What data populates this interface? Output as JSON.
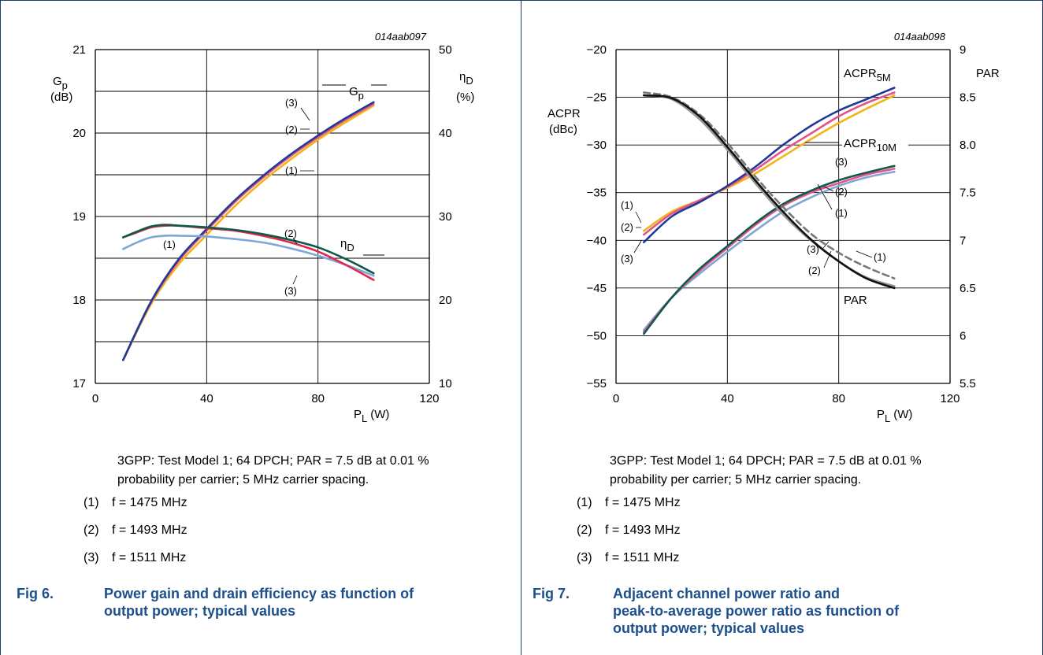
{
  "charts": [
    {
      "code": "014aab097",
      "xlabel": "P",
      "xlabel_sub": "L",
      "xlabel_unit": "(W)",
      "x_ticks": [
        "0",
        "40",
        "80",
        "120"
      ],
      "left_ticks": [
        "21",
        "20",
        "19",
        "18",
        "17"
      ],
      "right_ticks": [
        "50",
        "40",
        "30",
        "20",
        "10"
      ],
      "left_axis_label": {
        "main": "G",
        "sub": "p",
        "unit": "(dB)"
      },
      "right_axis_label": {
        "main": "η",
        "sub": "D",
        "unit": "(%)"
      },
      "curve_labels": {
        "gp_main": "G",
        "gp_sub": "p",
        "eta_main": "η",
        "eta_sub": "D"
      },
      "markers": [
        "(3)",
        "(2)",
        "(1)",
        "(2)",
        "(1)",
        "(3)"
      ],
      "caption": [
        "3GPP: Test Model 1; 64 DPCH; PAR = 7.5 dB at 0.01 %",
        "probability per carrier; 5 MHz carrier spacing."
      ],
      "legend": [
        {
          "num": "(1)",
          "text": "f = 1475 MHz"
        },
        {
          "num": "(2)",
          "text": "f = 1493 MHz"
        },
        {
          "num": "(3)",
          "text": "f = 1511 MHz"
        }
      ],
      "fig_label": "Fig 6.",
      "fig_title": [
        "Power gain and drain efficiency as function of",
        "output power; typical values"
      ]
    },
    {
      "code": "014aab098",
      "xlabel": "P",
      "xlabel_sub": "L",
      "xlabel_unit": "(W)",
      "x_ticks": [
        "0",
        "40",
        "80",
        "120"
      ],
      "left_ticks": [
        "−20",
        "−25",
        "−30",
        "−35",
        "−40",
        "−45",
        "−50",
        "−55"
      ],
      "right_ticks": [
        "9",
        "8.5",
        "8.0",
        "7.5",
        "7",
        "6.5",
        "6",
        "5.5"
      ],
      "left_axis_label": {
        "main": "ACPR",
        "unit": "(dBc)"
      },
      "right_axis_label": {
        "main": "PAR"
      },
      "curve_labels": {
        "acpr5_main": "ACPR",
        "acpr5_sub": "5M",
        "acpr10_main": "ACPR",
        "acpr10_sub": "10M",
        "par": "PAR"
      },
      "markers": [
        "(3)",
        "(2)",
        "(1)",
        "(1)",
        "(2)",
        "(3)",
        "(3)",
        "(2)",
        "(1)",
        "(3)",
        "(1)",
        "(2)"
      ],
      "caption": [
        "3GPP: Test Model 1; 64 DPCH; PAR = 7.5 dB at 0.01 %",
        "probability per carrier; 5 MHz carrier spacing."
      ],
      "legend": [
        {
          "num": "(1)",
          "text": "f = 1475 MHz"
        },
        {
          "num": "(2)",
          "text": "f = 1493 MHz"
        },
        {
          "num": "(3)",
          "text": "f = 1511 MHz"
        }
      ],
      "fig_label": "Fig 7.",
      "fig_title": [
        "Adjacent channel power ratio and",
        "peak-to-average power ratio as function of",
        "output power; typical values"
      ]
    }
  ],
  "colors": {
    "f1475": "#f2b418",
    "f1493": "#e3548a",
    "f1511": "#1f3b94",
    "eta_1475": "#7ea6d6",
    "eta_1493": "#e02a4a",
    "eta_1511": "#0d5a4a",
    "acpr10_1475": "#7ea6d6",
    "acpr10_1511": "#0d5a4a",
    "par_1475": "#777777",
    "par_1493": "#999999",
    "par_1511": "#111111",
    "title": "#1c4f8c",
    "border": "#1d3f6e"
  },
  "chart_data": [
    {
      "type": "line",
      "x_range": [
        0,
        120
      ],
      "left_axis": {
        "range": [
          17,
          21
        ],
        "unit": "dB"
      },
      "right_axis": {
        "range": [
          10,
          50
        ],
        "unit": "%"
      },
      "grid": true,
      "series": [
        {
          "name": "Gp (1)",
          "axis": "left",
          "x": [
            10,
            20,
            30,
            40,
            50,
            60,
            70,
            80,
            90,
            100
          ],
          "y": [
            17.28,
            17.95,
            18.43,
            18.78,
            19.12,
            19.42,
            19.68,
            19.92,
            20.13,
            20.33
          ]
        },
        {
          "name": "Gp (2)",
          "axis": "left",
          "x": [
            10,
            20,
            30,
            40,
            50,
            60,
            70,
            80,
            90,
            100
          ],
          "y": [
            17.28,
            17.97,
            18.47,
            18.83,
            19.17,
            19.46,
            19.72,
            19.95,
            20.16,
            20.35
          ]
        },
        {
          "name": "Gp (3)",
          "axis": "left",
          "x": [
            10,
            20,
            30,
            40,
            50,
            60,
            70,
            80,
            90,
            100
          ],
          "y": [
            17.28,
            17.98,
            18.49,
            18.85,
            19.19,
            19.48,
            19.74,
            19.97,
            20.18,
            20.37
          ]
        },
        {
          "name": "ηD (1)",
          "axis": "right",
          "x": [
            10,
            15,
            20,
            25,
            30,
            40,
            50,
            60,
            70,
            80,
            90,
            100
          ],
          "y": [
            26.1,
            26.9,
            27.5,
            27.7,
            27.7,
            27.6,
            27.3,
            26.9,
            26.2,
            25.3,
            24.2,
            22.9
          ]
        },
        {
          "name": "ηD (2)",
          "axis": "right",
          "x": [
            10,
            15,
            20,
            25,
            30,
            40,
            50,
            60,
            70,
            80,
            90,
            100
          ],
          "y": [
            27.5,
            28.1,
            28.7,
            28.9,
            28.9,
            28.6,
            28.3,
            27.7,
            26.9,
            25.8,
            24.2,
            22.4
          ]
        },
        {
          "name": "ηD (3)",
          "axis": "right",
          "x": [
            10,
            15,
            20,
            25,
            30,
            40,
            50,
            60,
            70,
            80,
            90,
            100
          ],
          "y": [
            27.5,
            28.2,
            28.8,
            29.0,
            28.9,
            28.7,
            28.4,
            27.9,
            27.2,
            26.3,
            24.9,
            23.2
          ]
        }
      ]
    },
    {
      "type": "line",
      "x_range": [
        0,
        120
      ],
      "left_axis": {
        "range": [
          -55,
          -20
        ],
        "unit": "dBc"
      },
      "right_axis": {
        "range": [
          5.5,
          9
        ]
      },
      "grid": true,
      "series": [
        {
          "name": "ACPR5M (1)",
          "axis": "left",
          "x": [
            10,
            20,
            30,
            40,
            50,
            60,
            70,
            80,
            90,
            100
          ],
          "y": [
            -39.0,
            -37.0,
            -35.8,
            -34.5,
            -33.0,
            -31.2,
            -29.4,
            -27.7,
            -26.2,
            -24.8
          ]
        },
        {
          "name": "ACPR5M (2)",
          "axis": "left",
          "x": [
            10,
            20,
            30,
            40,
            50,
            60,
            70,
            80,
            90,
            100
          ],
          "y": [
            -39.4,
            -37.2,
            -35.8,
            -34.4,
            -32.6,
            -30.6,
            -28.8,
            -27.0,
            -25.6,
            -24.5
          ]
        },
        {
          "name": "ACPR5M (3)",
          "axis": "left",
          "x": [
            10,
            20,
            30,
            40,
            50,
            60,
            70,
            80,
            90,
            100
          ],
          "y": [
            -40.2,
            -37.5,
            -36.0,
            -34.3,
            -32.3,
            -30.0,
            -28.0,
            -26.4,
            -25.2,
            -24.0
          ]
        },
        {
          "name": "ACPR10M (1)",
          "axis": "left",
          "x": [
            10,
            20,
            30,
            40,
            50,
            60,
            70,
            80,
            90,
            100
          ],
          "y": [
            -49.4,
            -46.0,
            -43.5,
            -41.2,
            -39.0,
            -37.0,
            -35.5,
            -34.3,
            -33.4,
            -32.8
          ]
        },
        {
          "name": "ACPR10M (2)",
          "axis": "left",
          "x": [
            10,
            20,
            30,
            40,
            50,
            60,
            70,
            80,
            90,
            100
          ],
          "y": [
            -49.6,
            -46.0,
            -43.2,
            -40.8,
            -38.4,
            -36.4,
            -35.0,
            -34.0,
            -33.1,
            -32.5
          ]
        },
        {
          "name": "ACPR10M (3)",
          "axis": "left",
          "x": [
            10,
            20,
            30,
            40,
            50,
            60,
            70,
            80,
            90,
            100
          ],
          "y": [
            -49.8,
            -46.0,
            -43.0,
            -40.6,
            -38.2,
            -36.2,
            -34.8,
            -33.7,
            -32.9,
            -32.2
          ]
        },
        {
          "name": "PAR (1)",
          "axis": "right",
          "x": [
            10,
            20,
            30,
            40,
            50,
            60,
            70,
            80,
            90,
            100
          ],
          "y": [
            8.55,
            8.5,
            8.32,
            8.02,
            7.67,
            7.35,
            7.07,
            6.87,
            6.72,
            6.6
          ]
        },
        {
          "name": "PAR (2)",
          "axis": "right",
          "x": [
            10,
            20,
            30,
            40,
            50,
            60,
            70,
            80,
            90,
            100
          ],
          "y": [
            8.52,
            8.48,
            8.27,
            7.95,
            7.6,
            7.27,
            7.0,
            6.78,
            6.61,
            6.52
          ]
        },
        {
          "name": "PAR (3)",
          "axis": "right",
          "x": [
            10,
            20,
            30,
            40,
            50,
            60,
            70,
            80,
            90,
            100
          ],
          "y": [
            8.52,
            8.49,
            8.3,
            7.98,
            7.63,
            7.3,
            7.01,
            6.78,
            6.6,
            6.5
          ]
        }
      ]
    }
  ]
}
